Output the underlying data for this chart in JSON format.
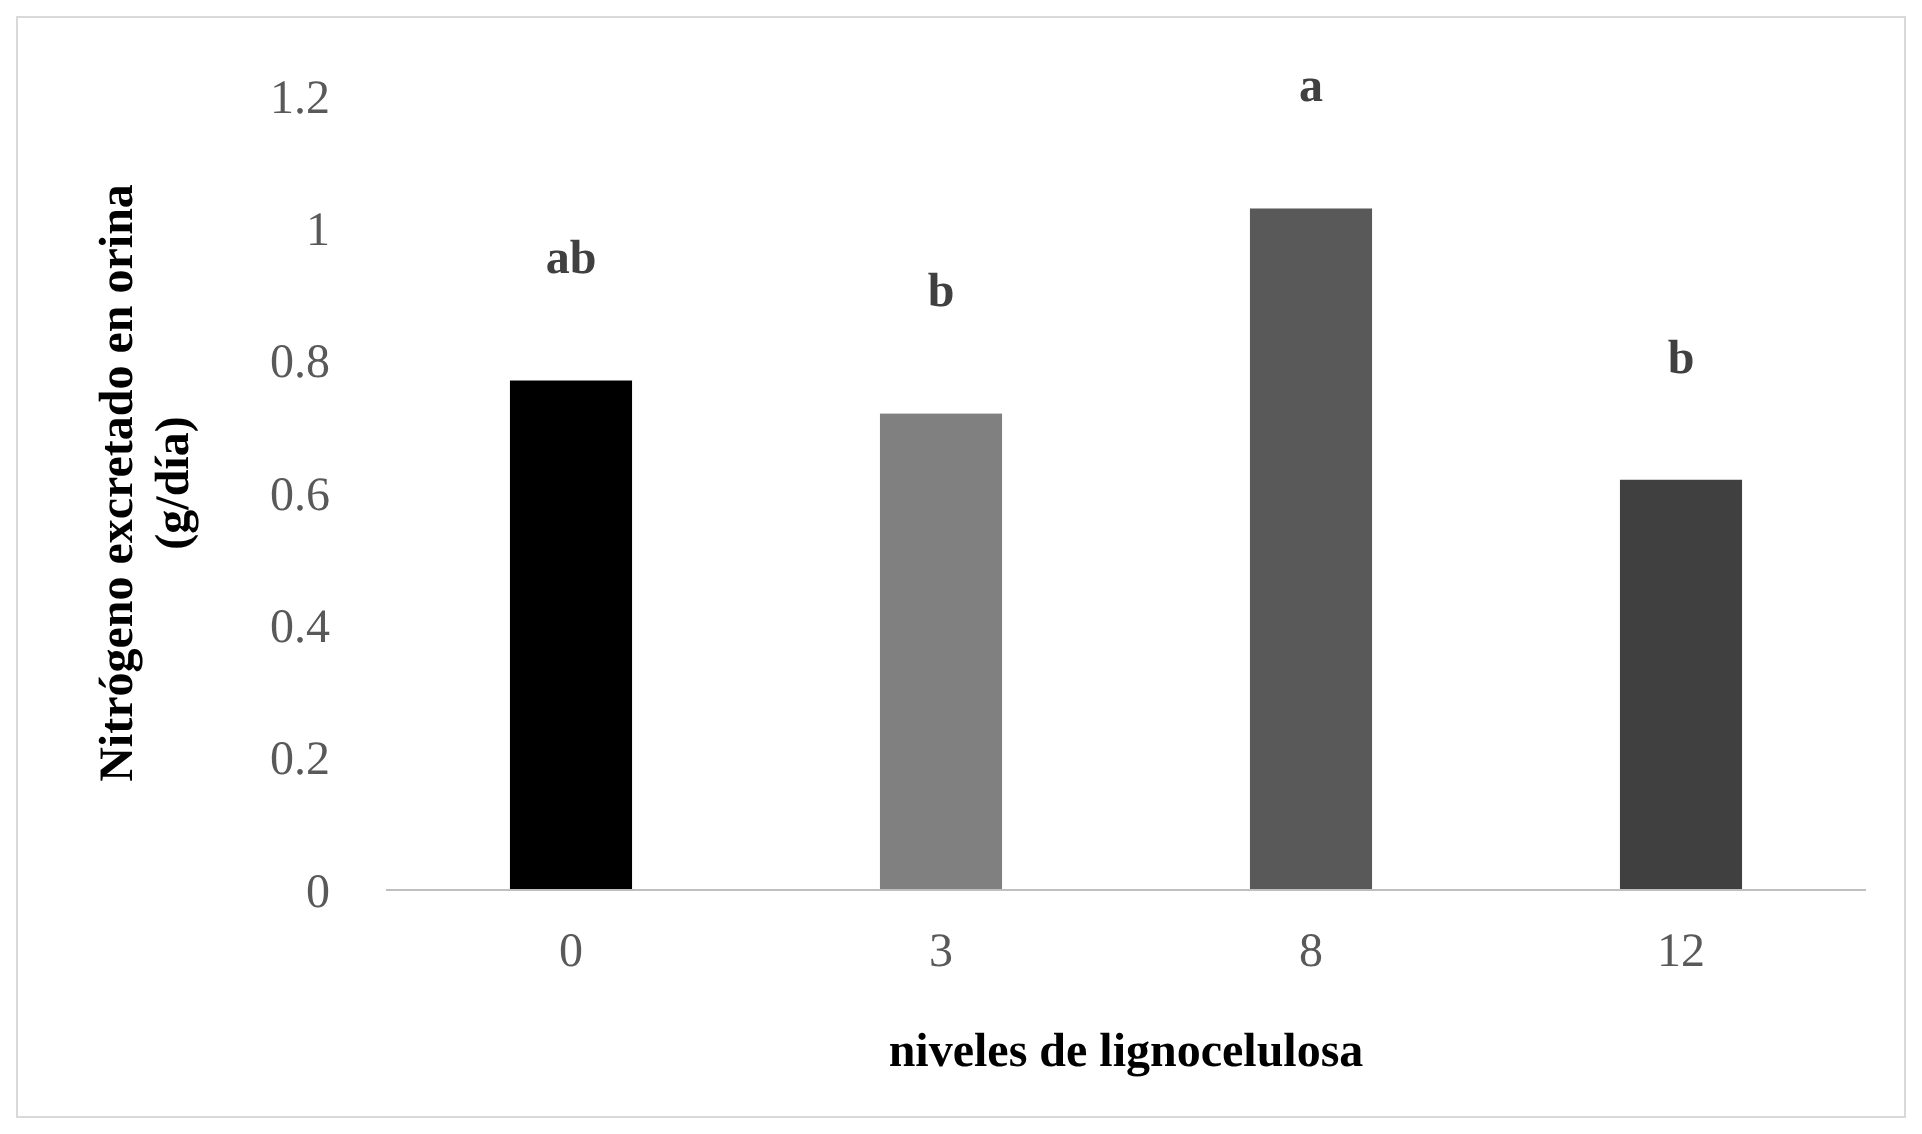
{
  "chart_data": {
    "type": "bar",
    "xlabel": "niveles de lignocelulosa",
    "ylabel": "Nitrógeno excretado en orina (g/día)",
    "categories": [
      "0",
      "3",
      "8",
      "12"
    ],
    "values": [
      0.77,
      0.72,
      1.03,
      0.62
    ],
    "colors": [
      "#000000",
      "#808080",
      "#595959",
      "#404040"
    ],
    "ylim": [
      0,
      1.2
    ],
    "yticks": [
      0,
      0.2,
      0.4,
      0.6,
      0.8,
      1,
      1.2
    ],
    "grid": false,
    "annotations": [
      "ab",
      "b",
      "a",
      "b"
    ]
  }
}
